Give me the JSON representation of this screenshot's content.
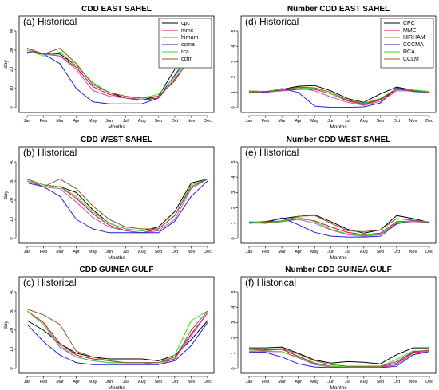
{
  "colors": {
    "cpc": "#000000",
    "mme": "#e3003a",
    "hirham": "#c24fc8",
    "ccma": "#1f1fd6",
    "rca": "#33e21f",
    "cclm": "#8a5a2b"
  },
  "months": [
    "Jan",
    "Feb",
    "Mar",
    "Apr",
    "May",
    "Jun",
    "Jul",
    "Aug",
    "Sep",
    "Oct",
    "Nov",
    "Dec"
  ],
  "chart_data": [
    {
      "type": "line",
      "title": "CDD EAST SAHEL",
      "label": "(a) Historical",
      "xlabel": "Months",
      "ylabel": "day",
      "ylim": [
        0,
        40
      ],
      "yticks": [
        0,
        10,
        20,
        30,
        40
      ],
      "legend": "top-right",
      "series": [
        {
          "name": "cpc",
          "color": "cpc",
          "values": [
            31,
            28,
            28,
            22,
            13,
            8,
            5,
            4,
            6,
            20,
            27,
            31
          ]
        },
        {
          "name": "mme",
          "color": "mme",
          "values": [
            30,
            28,
            27,
            21,
            11,
            7,
            5,
            4,
            5,
            15,
            26,
            31
          ]
        },
        {
          "name": "hirham",
          "color": "hirham",
          "values": [
            29,
            28,
            27,
            20,
            9,
            6,
            5,
            5,
            6,
            14,
            27,
            31
          ]
        },
        {
          "name": "ccma",
          "color": "ccma",
          "values": [
            29,
            28,
            23,
            10,
            3,
            2,
            2,
            2,
            5,
            17,
            29,
            31
          ]
        },
        {
          "name": "rca",
          "color": "rca",
          "values": [
            30,
            27,
            29,
            22,
            13,
            8,
            6,
            5,
            7,
            16,
            29,
            31
          ]
        },
        {
          "name": "cclm",
          "color": "cclm",
          "values": [
            31,
            28,
            31,
            23,
            12,
            8,
            6,
            5,
            6,
            14,
            27,
            31
          ]
        }
      ]
    },
    {
      "type": "line",
      "title": "Number CDD EAST SAHEL",
      "label": "(d) Historical",
      "xlabel": "Months",
      "ylabel": "",
      "ylim": [
        0,
        5
      ],
      "yticks": [
        0,
        1,
        2,
        3,
        4,
        5
      ],
      "legend": "top-right",
      "series": [
        {
          "name": "CPC",
          "color": "cpc",
          "values": [
            1.1,
            1.05,
            1.2,
            1.4,
            1.45,
            1.1,
            0.6,
            0.35,
            0.9,
            1.35,
            1.15,
            1.05
          ]
        },
        {
          "name": "MME",
          "color": "mme",
          "values": [
            1.0,
            1.05,
            1.1,
            1.2,
            1.2,
            0.9,
            0.45,
            0.2,
            0.5,
            1.2,
            1.1,
            1.05
          ]
        },
        {
          "name": "HIRHAM",
          "color": "hirham",
          "values": [
            1.05,
            1.0,
            1.1,
            1.3,
            1.1,
            0.7,
            0.35,
            0.15,
            0.4,
            1.1,
            1.1,
            1.05
          ]
        },
        {
          "name": "CCCMA",
          "color": "ccma",
          "values": [
            1.1,
            1.0,
            1.25,
            1.0,
            0.1,
            0.02,
            0.02,
            0.05,
            0.3,
            1.3,
            1.05,
            1.0
          ]
        },
        {
          "name": "RCA",
          "color": "rca",
          "values": [
            1.1,
            1.05,
            1.2,
            1.3,
            1.25,
            0.9,
            0.5,
            0.3,
            0.6,
            1.25,
            1.15,
            1.05
          ]
        },
        {
          "name": "CCLM",
          "color": "cclm",
          "values": [
            1.0,
            1.05,
            1.15,
            1.35,
            1.3,
            1.0,
            0.5,
            0.25,
            0.55,
            1.25,
            1.1,
            1.0
          ]
        }
      ]
    },
    {
      "type": "line",
      "title": "CDD WEST SAHEL",
      "label": "(b) Historical",
      "xlabel": "Months",
      "ylabel": "day",
      "ylim": [
        0,
        40
      ],
      "yticks": [
        0,
        10,
        20,
        30,
        40
      ],
      "legend": "none",
      "series": [
        {
          "name": "cpc",
          "color": "cpc",
          "values": [
            31,
            28,
            27,
            24,
            15,
            8,
            5,
            4,
            6,
            14,
            29,
            31
          ]
        },
        {
          "name": "mme",
          "color": "mme",
          "values": [
            30,
            27,
            27,
            21,
            13,
            7,
            4,
            3,
            5,
            12,
            27,
            31
          ]
        },
        {
          "name": "hirham",
          "color": "hirham",
          "values": [
            30,
            27,
            26,
            19,
            11,
            6,
            4,
            3,
            4,
            10,
            26,
            31
          ]
        },
        {
          "name": "ccma",
          "color": "ccma",
          "values": [
            29,
            27,
            22,
            10,
            5,
            3,
            3,
            3,
            3,
            9,
            22,
            30
          ]
        },
        {
          "name": "rca",
          "color": "rca",
          "values": [
            31,
            28,
            27,
            22,
            14,
            8,
            5,
            4,
            5,
            12,
            28,
            31
          ]
        },
        {
          "name": "cclm",
          "color": "cclm",
          "values": [
            31,
            27,
            31,
            26,
            17,
            10,
            6,
            5,
            5,
            12,
            27,
            31
          ]
        }
      ]
    },
    {
      "type": "line",
      "title": "Number CDD WEST SAHEL",
      "label": "(e) Historical",
      "xlabel": "Months",
      "ylabel": "",
      "ylim": [
        0,
        5
      ],
      "yticks": [
        0,
        1,
        2,
        3,
        4,
        5
      ],
      "legend": "none",
      "series": [
        {
          "name": "CPC",
          "color": "cpc",
          "values": [
            1.05,
            1.1,
            1.3,
            1.45,
            1.55,
            1.1,
            0.6,
            0.35,
            0.55,
            1.5,
            1.3,
            1.05
          ]
        },
        {
          "name": "MME",
          "color": "mme",
          "values": [
            1.05,
            1.0,
            1.1,
            1.3,
            1.15,
            0.75,
            0.4,
            0.25,
            0.35,
            1.1,
            1.15,
            1.05
          ]
        },
        {
          "name": "HIRHAM",
          "color": "hirham",
          "values": [
            1.0,
            1.0,
            1.1,
            1.25,
            1.0,
            0.55,
            0.25,
            0.15,
            0.25,
            1.0,
            1.1,
            1.05
          ]
        },
        {
          "name": "CCCMA",
          "color": "ccma",
          "values": [
            1.05,
            1.0,
            1.35,
            0.9,
            0.4,
            0.15,
            0.1,
            0.1,
            0.15,
            0.95,
            1.2,
            1.05
          ]
        },
        {
          "name": "RCA",
          "color": "rca",
          "values": [
            1.1,
            1.05,
            1.1,
            1.4,
            1.1,
            0.6,
            0.3,
            0.2,
            0.3,
            1.05,
            1.15,
            1.1
          ]
        },
        {
          "name": "CCLM",
          "color": "cclm",
          "values": [
            1.0,
            1.05,
            1.15,
            1.45,
            1.5,
            1.0,
            0.5,
            0.45,
            0.55,
            1.3,
            1.2,
            1.0
          ]
        }
      ]
    },
    {
      "type": "line",
      "title": "CDD GUINEA GULF",
      "label": "(c) Historical",
      "xlabel": "Months",
      "ylabel": "day",
      "ylim": [
        0,
        40
      ],
      "yticks": [
        0,
        10,
        20,
        30,
        40
      ],
      "legend": "none",
      "series": [
        {
          "name": "cpc",
          "color": "cpc",
          "values": [
            25,
            20,
            13,
            8,
            6,
            5,
            5,
            5,
            4,
            7,
            15,
            25
          ]
        },
        {
          "name": "mme",
          "color": "mme",
          "values": [
            30,
            24,
            13,
            7,
            5,
            4,
            3,
            3,
            3,
            6,
            18,
            29
          ]
        },
        {
          "name": "hirham",
          "color": "hirham",
          "values": [
            30,
            23,
            11,
            6,
            4,
            3,
            3,
            3,
            2,
            5,
            17,
            29
          ]
        },
        {
          "name": "ccma",
          "color": "ccma",
          "values": [
            23,
            14,
            7,
            3,
            2,
            2,
            2,
            2,
            2,
            4,
            12,
            24
          ]
        },
        {
          "name": "rca",
          "color": "rca",
          "values": [
            30,
            23,
            12,
            6,
            4,
            3,
            3,
            3,
            3,
            7,
            25,
            30
          ]
        },
        {
          "name": "cclm",
          "color": "cclm",
          "values": [
            31,
            28,
            23,
            9,
            6,
            4,
            3,
            3,
            3,
            5,
            20,
            30
          ]
        }
      ]
    },
    {
      "type": "line",
      "title": "Number CDD GUINEA GULF",
      "label": "(f) Historical",
      "xlabel": "Months",
      "ylabel": "",
      "ylim": [
        0,
        5
      ],
      "yticks": [
        0,
        1,
        2,
        3,
        4,
        5
      ],
      "legend": "none",
      "series": [
        {
          "name": "CPC",
          "color": "cpc",
          "values": [
            1.35,
            1.35,
            1.4,
            1.0,
            0.55,
            0.35,
            0.45,
            0.4,
            0.3,
            0.9,
            1.35,
            1.35
          ]
        },
        {
          "name": "MME",
          "color": "mme",
          "values": [
            1.1,
            1.2,
            1.25,
            0.8,
            0.35,
            0.15,
            0.1,
            0.1,
            0.1,
            0.35,
            1.05,
            1.15
          ]
        },
        {
          "name": "HIRHAM",
          "color": "hirham",
          "values": [
            1.05,
            1.1,
            1.1,
            0.7,
            0.25,
            0.1,
            0.1,
            0.05,
            0.05,
            0.25,
            1.0,
            1.1
          ]
        },
        {
          "name": "CCCMA",
          "color": "ccma",
          "values": [
            1.05,
            1.05,
            0.75,
            0.3,
            0.1,
            0.05,
            0.05,
            0.05,
            0.05,
            0.15,
            0.9,
            1.1
          ]
        },
        {
          "name": "RCA",
          "color": "rca",
          "values": [
            1.1,
            1.15,
            1.1,
            0.75,
            0.3,
            0.15,
            0.1,
            0.1,
            0.1,
            0.6,
            1.15,
            1.1
          ]
        },
        {
          "name": "CCLM",
          "color": "cclm",
          "values": [
            1.2,
            1.25,
            1.3,
            0.95,
            0.5,
            0.25,
            0.15,
            0.15,
            0.15,
            0.45,
            1.1,
            1.2
          ]
        }
      ]
    }
  ]
}
